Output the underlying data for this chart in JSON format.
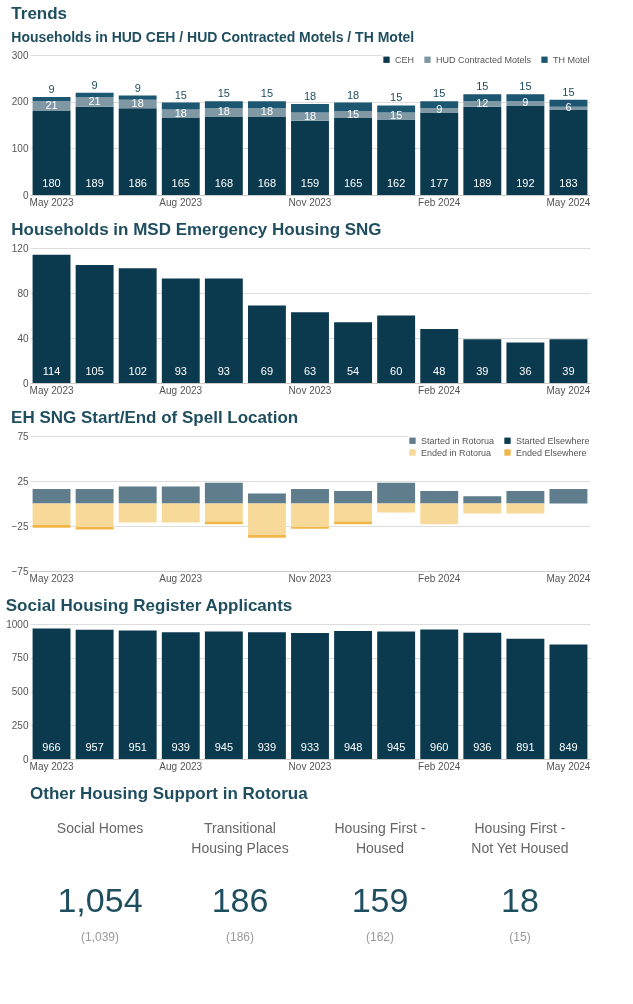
{
  "chart_data": [
    {
      "type": "bar",
      "title": "Trends",
      "subtitle": "Households in HUD CEH / HUD Contracted Motels / TH Motel",
      "stacked": true,
      "data_labels": true,
      "grid": "y",
      "legend": "top right",
      "categories": [
        "May 2023",
        null,
        null,
        "Aug 2023",
        null,
        null,
        "Nov 2023",
        null,
        null,
        "Feb 2024",
        null,
        null,
        "May 2024"
      ],
      "ylim": [
        0,
        300
      ],
      "yticks": [
        0,
        100,
        200,
        300
      ],
      "series": [
        {
          "name": "CEH",
          "color": "#0b3a4f",
          "values": [
            180,
            189,
            186,
            165,
            168,
            168,
            159,
            165,
            162,
            177,
            189,
            192,
            183
          ]
        },
        {
          "name": "HUD Contracted Motels",
          "color": "#7f98a4",
          "values": [
            21,
            21,
            18,
            18,
            18,
            18,
            18,
            15,
            15,
            9,
            12,
            9,
            6
          ]
        },
        {
          "name": "TH Motel",
          "color": "#1d5670",
          "values": [
            9,
            9,
            9,
            15,
            15,
            15,
            18,
            18,
            15,
            15,
            15,
            15,
            15
          ]
        }
      ]
    },
    {
      "type": "bar",
      "title": "Households in MSD Emergency Housing SNG",
      "data_labels": true,
      "grid": "y",
      "color": "#0b3a4f",
      "categories": [
        "May 2023",
        null,
        null,
        "Aug 2023",
        null,
        null,
        "Nov 2023",
        null,
        null,
        "Feb 2024",
        null,
        null,
        "May 2024"
      ],
      "ylim": [
        0,
        120
      ],
      "yticks": [
        0,
        40,
        80,
        120
      ],
      "values": [
        114,
        105,
        102,
        93,
        93,
        69,
        63,
        54,
        60,
        48,
        39,
        36,
        39
      ]
    },
    {
      "type": "bar",
      "title": "EH SNG Start/End of Spell Location",
      "stacked": true,
      "grid": "y",
      "legend": "top right",
      "categories": [
        "May 2023",
        null,
        null,
        "Aug 2023",
        null,
        null,
        "Nov 2023",
        null,
        null,
        "Feb 2024",
        null,
        null,
        "May 2024"
      ],
      "ylim": [
        -75,
        75
      ],
      "yticks": [
        -75,
        -25,
        25,
        75
      ],
      "series": [
        {
          "name": "Started in Rotorua",
          "color": "#5f7d8c",
          "values": [
            16,
            16,
            19,
            19,
            23,
            11,
            16,
            14,
            23,
            14,
            8,
            14,
            16
          ]
        },
        {
          "name": "Started Elsewhere",
          "color": "#0b3a4f",
          "values": [
            0,
            0,
            0,
            0,
            0,
            0,
            0,
            0,
            0,
            0,
            0,
            0,
            0
          ]
        },
        {
          "name": "Ended in Rotorua",
          "color": "#f7d99a",
          "values": [
            -24,
            -26,
            -21,
            -21,
            -20,
            -35,
            -26,
            -20,
            -10,
            -23,
            -11,
            -11,
            0
          ]
        },
        {
          "name": "Ended Elsewhere",
          "color": "#f0b648",
          "values": [
            -3,
            -3,
            0,
            0,
            -3,
            -3,
            -2,
            -3,
            0,
            0,
            0,
            0,
            0
          ]
        }
      ]
    },
    {
      "type": "bar",
      "title": "Social Housing Register Applicants",
      "data_labels": true,
      "grid": "y",
      "color": "#0b3a4f",
      "categories": [
        "May 2023",
        null,
        null,
        "Aug 2023",
        null,
        null,
        "Nov 2023",
        null,
        null,
        "Feb 2024",
        null,
        null,
        "May 2024"
      ],
      "ylim": [
        0,
        1000
      ],
      "yticks": [
        0,
        250,
        500,
        750,
        1000
      ],
      "values": [
        966,
        957,
        951,
        939,
        945,
        939,
        933,
        948,
        945,
        960,
        936,
        891,
        849
      ]
    },
    {
      "type": "other",
      "title": "Other Housing Support in Rotorua",
      "annotations": [
        "Social Homes",
        "1,054",
        "(1,039)",
        "Transitional Housing Places",
        "186",
        "(186)",
        "Housing First - Housed",
        "159",
        "(162)",
        "Housing First - Not Yet Housed",
        "18",
        "(15)"
      ]
    }
  ]
}
